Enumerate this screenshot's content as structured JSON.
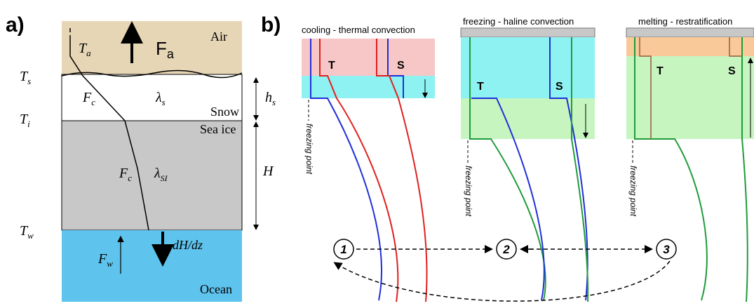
{
  "panel_a": {
    "label": "a)",
    "air": {
      "temp": {
        "base": "T",
        "sub": "a"
      },
      "flux": {
        "base": "F",
        "sub": "a"
      },
      "name": "Air"
    },
    "snow": {
      "temp": {
        "base": "T",
        "sub": "s"
      },
      "flux": {
        "base": "F",
        "sub": "c"
      },
      "conductivity": {
        "base": "λ",
        "sub": "s"
      },
      "thickness": {
        "base": "h",
        "sub": "s"
      },
      "name": "Snow"
    },
    "ice": {
      "temp": {
        "base": "T",
        "sub": "i"
      },
      "flux": {
        "base": "F",
        "sub": "c"
      },
      "conductivity": {
        "base": "λ",
        "sub": "SI"
      },
      "thickness": "H",
      "name": "Sea ice"
    },
    "ocean": {
      "temp": {
        "base": "T",
        "sub": "w"
      },
      "growth": "dH/dz",
      "flux": {
        "base": "F",
        "sub": "w"
      },
      "name": "Ocean"
    }
  },
  "panel_b": {
    "label": "b)",
    "stages": [
      {
        "title": "cooling - thermal convection",
        "t": "T",
        "s": "S",
        "freezing": "freezing point",
        "number": "1"
      },
      {
        "title": "freezing - haline convection",
        "t": "T",
        "s": "S",
        "freezing": "freezing point",
        "number": "2"
      },
      {
        "title": "melting - restratification",
        "t": "T",
        "s": "S",
        "freezing": "freezing point",
        "number": "3"
      }
    ]
  }
}
